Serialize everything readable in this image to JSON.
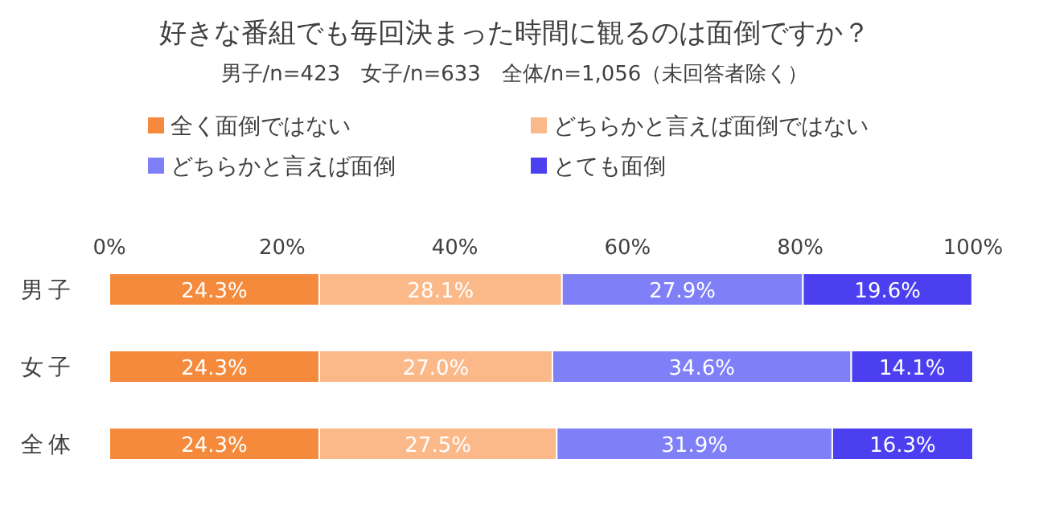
{
  "chart_data": {
    "type": "bar",
    "orientation": "horizontal",
    "stacked": true,
    "title": "好きな番組でも毎回決まった時間に観るのは面倒ですか？",
    "subtitle": "男子/n=423　女子/n=633　全体/n=1,056（未回答者除く）",
    "categories": [
      "男子",
      "女子",
      "全体"
    ],
    "series": [
      {
        "name": "全く面倒ではない",
        "color": "#f58a3c",
        "values": [
          24.3,
          24.3,
          24.3
        ],
        "value_labels": [
          "24.3%",
          "24.3%",
          "24.3%"
        ]
      },
      {
        "name": "どちらかと言えば面倒ではない",
        "color": "#fbb98a",
        "values": [
          28.1,
          27.0,
          27.5
        ],
        "value_labels": [
          "28.1%",
          "27.0%",
          "27.5%"
        ]
      },
      {
        "name": "どちらかと言えば面倒",
        "color": "#7f7ff7",
        "values": [
          27.9,
          34.6,
          31.9
        ],
        "value_labels": [
          "27.9%",
          "34.6%",
          "31.9%"
        ]
      },
      {
        "name": "とても面倒",
        "color": "#4b3ff0",
        "values": [
          19.6,
          14.1,
          16.3
        ],
        "value_labels": [
          "19.6%",
          "14.1%",
          "16.3%"
        ]
      }
    ],
    "xlim": [
      0,
      100
    ],
    "xticks": [
      {
        "value": 0,
        "label": "0%"
      },
      {
        "value": 20,
        "label": "20%"
      },
      {
        "value": 40,
        "label": "40%"
      },
      {
        "value": 60,
        "label": "60%"
      },
      {
        "value": 80,
        "label": "80%"
      },
      {
        "value": 100,
        "label": "100%"
      }
    ],
    "legend": "top"
  }
}
